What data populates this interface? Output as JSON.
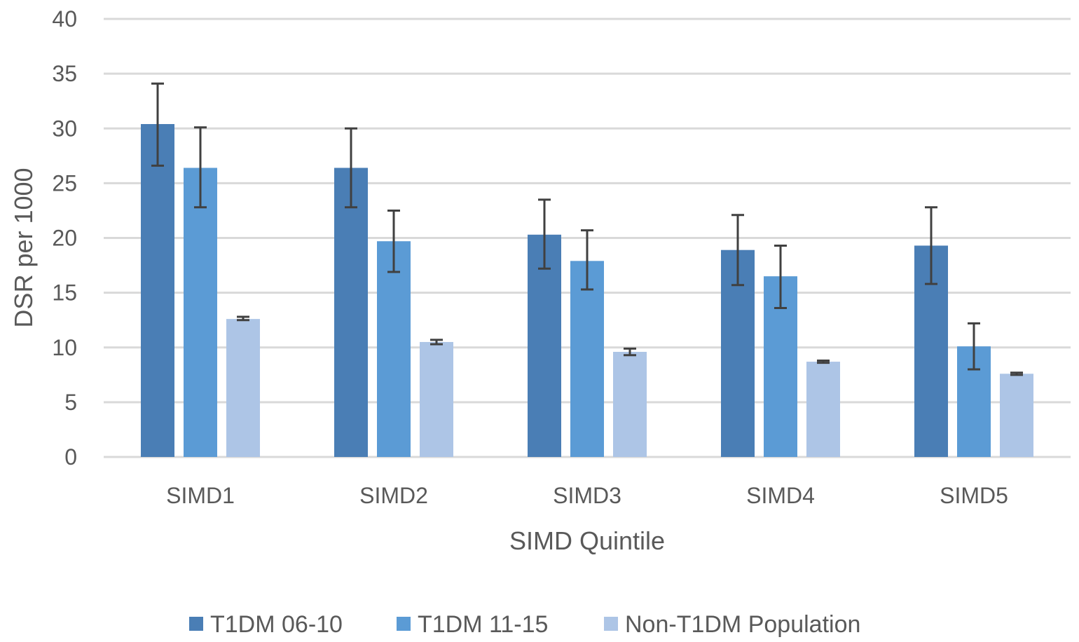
{
  "chart_data": {
    "type": "bar",
    "title": "",
    "xlabel": "SIMD Quintile",
    "ylabel": "DSR per 1000",
    "ylim": [
      0,
      40
    ],
    "yticks": [
      0,
      5,
      10,
      15,
      20,
      25,
      30,
      35,
      40
    ],
    "grid": true,
    "legend_position": "bottom",
    "error_bars": true,
    "categories": [
      "SIMD1",
      "SIMD2",
      "SIMD3",
      "SIMD4",
      "SIMD5"
    ],
    "series": [
      {
        "name": "T1DM 06-10",
        "color": "#4a7eb5",
        "values": [
          30.4,
          26.4,
          20.3,
          18.9,
          19.3
        ],
        "error_low": [
          26.6,
          22.8,
          17.2,
          15.7,
          15.8
        ],
        "error_high": [
          34.1,
          30.0,
          23.5,
          22.1,
          22.8
        ]
      },
      {
        "name": "T1DM 11-15",
        "color": "#5b9bd5",
        "values": [
          26.4,
          19.7,
          17.9,
          16.5,
          10.1
        ],
        "error_low": [
          22.8,
          16.9,
          15.3,
          13.6,
          8.0
        ],
        "error_high": [
          30.1,
          22.5,
          20.7,
          19.3,
          12.2
        ]
      },
      {
        "name": "Non-T1DM Population",
        "color": "#adc5e6",
        "values": [
          12.6,
          10.5,
          9.6,
          8.7,
          7.6
        ],
        "error_low": [
          12.5,
          10.3,
          9.3,
          8.6,
          7.5
        ],
        "error_high": [
          12.8,
          10.7,
          9.9,
          8.8,
          7.7
        ]
      }
    ]
  }
}
